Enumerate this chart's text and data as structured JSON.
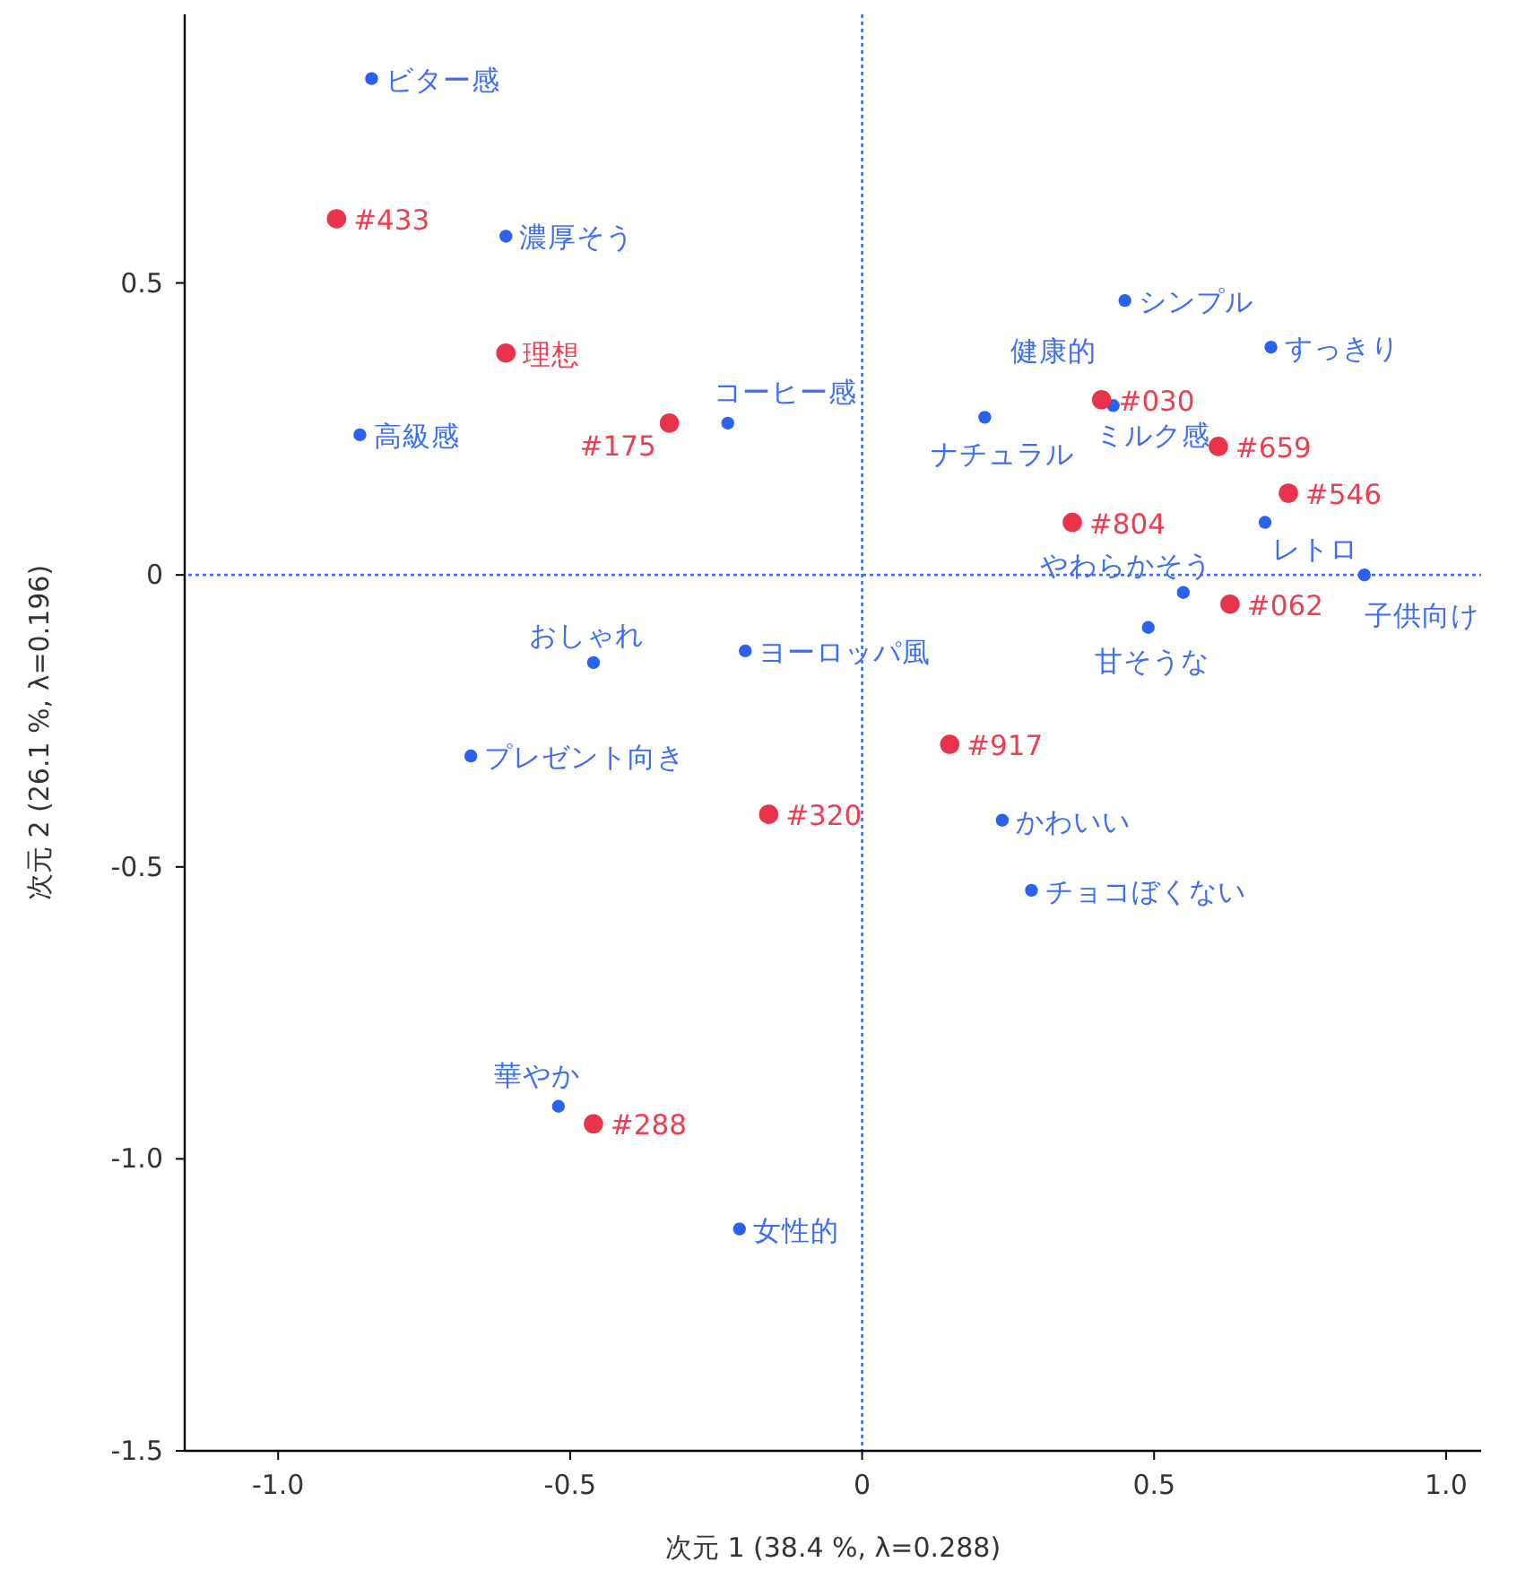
{
  "chart_data": {
    "type": "scatter",
    "xlabel": "次元 1  (38.4 %, λ=0.288)",
    "ylabel": "次元 2  (26.1 %, λ=0.196)",
    "xlim": [
      -1.16,
      1.06
    ],
    "ylim": [
      -1.5,
      0.96
    ],
    "xticks": [
      {
        "value": -1,
        "label": "-1.0"
      },
      {
        "value": -0.5,
        "label": "-0.5"
      },
      0,
      0.5,
      {
        "value": 1,
        "label": "1.0"
      }
    ],
    "yticks": [
      0.5,
      0,
      -0.5,
      {
        "value": -1,
        "label": "-1.0"
      },
      {
        "value": -1.5,
        "label": "-1.5"
      }
    ],
    "grid": false,
    "marker": "circle",
    "ref_lines": [
      {
        "axis": "x",
        "value": 0,
        "color": "#3b6ef5",
        "line_style": "dotted"
      },
      {
        "axis": "y",
        "value": 0,
        "color": "#3b6ef5",
        "line_style": "dotted"
      }
    ],
    "series": [
      {
        "color": "#2a62f0",
        "x": [
          -0.84,
          -0.61,
          -0.86,
          -0.23,
          0.45,
          0.7,
          0.21,
          null,
          0.43,
          0.69,
          0.55,
          0.86,
          0.49,
          -0.46,
          -0.2,
          -0.67,
          0.24,
          0.29,
          -0.52,
          -0.21
        ],
        "values": [
          0.85,
          0.58,
          0.24,
          0.26,
          0.47,
          0.39,
          0.27,
          null,
          0.29,
          0.09,
          -0.03,
          0.0,
          -0.09,
          -0.15,
          -0.13,
          -0.31,
          -0.42,
          -0.54,
          -0.91,
          -1.12
        ]
      },
      {
        "color": "#e8334a",
        "x": [
          -0.9,
          -0.61,
          -0.33,
          0.41,
          0.61,
          0.73,
          0.36,
          0.63,
          0.15,
          -0.16,
          -0.46
        ],
        "values": [
          0.61,
          0.38,
          0.26,
          0.3,
          0.22,
          0.14,
          0.09,
          -0.05,
          -0.29,
          -0.41,
          -0.94
        ]
      }
    ],
    "annotations": [
      {
        "text": "ビター感",
        "x": -0.84,
        "y": 0.85
      },
      {
        "text": "濃厚そう",
        "x": -0.61,
        "y": 0.58
      },
      {
        "text": "高級感",
        "x": -0.86,
        "y": 0.24
      },
      {
        "text": "コーヒー感",
        "x": -0.23,
        "y": 0.26
      },
      {
        "text": "シンプル",
        "x": 0.45,
        "y": 0.47
      },
      {
        "text": "すっきり",
        "x": 0.7,
        "y": 0.39
      },
      {
        "text": "ナチュラル",
        "x": 0.21,
        "y": 0.27
      },
      {
        "text": "健康的",
        "x": 0.42,
        "y": 0.3
      },
      {
        "text": "ミルク感",
        "x": 0.43,
        "y": 0.29
      },
      {
        "text": "レトロ",
        "x": 0.69,
        "y": 0.09
      },
      {
        "text": "やわらかそう",
        "x": 0.55,
        "y": -0.03
      },
      {
        "text": "子供向け",
        "x": 0.86,
        "y": 0.0
      },
      {
        "text": "甘そうな",
        "x": 0.49,
        "y": -0.09
      },
      {
        "text": "おしゃれ",
        "x": -0.46,
        "y": -0.15
      },
      {
        "text": "ヨーロッパ風",
        "x": -0.2,
        "y": -0.13
      },
      {
        "text": "プレゼント向き",
        "x": -0.67,
        "y": -0.31
      },
      {
        "text": "かわいい",
        "x": 0.24,
        "y": -0.42
      },
      {
        "text": "チョコぼくない",
        "x": 0.29,
        "y": -0.54
      },
      {
        "text": "華やか",
        "x": -0.52,
        "y": -0.91
      },
      {
        "text": "女性的",
        "x": -0.21,
        "y": -1.12
      },
      {
        "text": "#433",
        "x": -0.9,
        "y": 0.61
      },
      {
        "text": "理想",
        "x": -0.61,
        "y": 0.38
      },
      {
        "text": "#175",
        "x": -0.33,
        "y": 0.26
      },
      {
        "text": "#030",
        "x": 0.41,
        "y": 0.3
      },
      {
        "text": "#659",
        "x": 0.61,
        "y": 0.22
      },
      {
        "text": "#546",
        "x": 0.73,
        "y": 0.14
      },
      {
        "text": "#804",
        "x": 0.36,
        "y": 0.09
      },
      {
        "text": "#062",
        "x": 0.63,
        "y": -0.05
      },
      {
        "text": "#917",
        "x": 0.15,
        "y": -0.29
      },
      {
        "text": "#320",
        "x": -0.16,
        "y": -0.41
      },
      {
        "text": "#288",
        "x": -0.46,
        "y": -0.94
      }
    ]
  }
}
